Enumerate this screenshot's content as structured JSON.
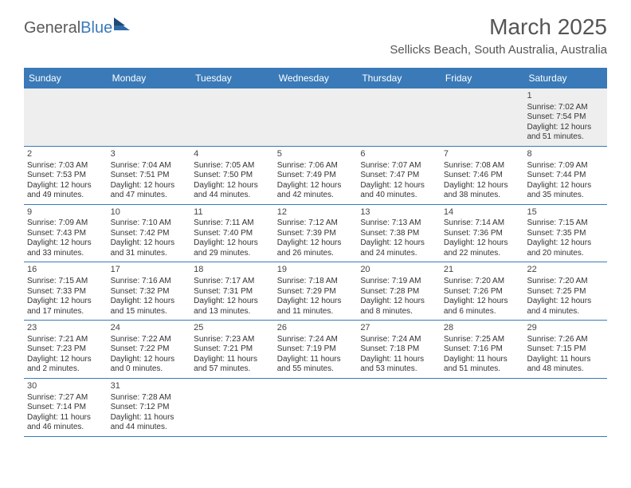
{
  "logo": {
    "part1": "General",
    "part2": "Blue"
  },
  "title": "March 2025",
  "location": "Sellicks Beach, South Australia, Australia",
  "day_headers": [
    "Sunday",
    "Monday",
    "Tuesday",
    "Wednesday",
    "Thursday",
    "Friday",
    "Saturday"
  ],
  "colors": {
    "header_bg": "#3a7ab8",
    "header_text": "#ffffff",
    "rule": "#3a7ab8",
    "first_row_bg": "#eeeeee",
    "title_color": "#555555",
    "text_color": "#333333"
  },
  "weeks": [
    [
      {},
      {},
      {},
      {},
      {},
      {},
      {
        "n": "1",
        "sr": "Sunrise: 7:02 AM",
        "ss": "Sunset: 7:54 PM",
        "d1": "Daylight: 12 hours",
        "d2": "and 51 minutes."
      }
    ],
    [
      {
        "n": "2",
        "sr": "Sunrise: 7:03 AM",
        "ss": "Sunset: 7:53 PM",
        "d1": "Daylight: 12 hours",
        "d2": "and 49 minutes."
      },
      {
        "n": "3",
        "sr": "Sunrise: 7:04 AM",
        "ss": "Sunset: 7:51 PM",
        "d1": "Daylight: 12 hours",
        "d2": "and 47 minutes."
      },
      {
        "n": "4",
        "sr": "Sunrise: 7:05 AM",
        "ss": "Sunset: 7:50 PM",
        "d1": "Daylight: 12 hours",
        "d2": "and 44 minutes."
      },
      {
        "n": "5",
        "sr": "Sunrise: 7:06 AM",
        "ss": "Sunset: 7:49 PM",
        "d1": "Daylight: 12 hours",
        "d2": "and 42 minutes."
      },
      {
        "n": "6",
        "sr": "Sunrise: 7:07 AM",
        "ss": "Sunset: 7:47 PM",
        "d1": "Daylight: 12 hours",
        "d2": "and 40 minutes."
      },
      {
        "n": "7",
        "sr": "Sunrise: 7:08 AM",
        "ss": "Sunset: 7:46 PM",
        "d1": "Daylight: 12 hours",
        "d2": "and 38 minutes."
      },
      {
        "n": "8",
        "sr": "Sunrise: 7:09 AM",
        "ss": "Sunset: 7:44 PM",
        "d1": "Daylight: 12 hours",
        "d2": "and 35 minutes."
      }
    ],
    [
      {
        "n": "9",
        "sr": "Sunrise: 7:09 AM",
        "ss": "Sunset: 7:43 PM",
        "d1": "Daylight: 12 hours",
        "d2": "and 33 minutes."
      },
      {
        "n": "10",
        "sr": "Sunrise: 7:10 AM",
        "ss": "Sunset: 7:42 PM",
        "d1": "Daylight: 12 hours",
        "d2": "and 31 minutes."
      },
      {
        "n": "11",
        "sr": "Sunrise: 7:11 AM",
        "ss": "Sunset: 7:40 PM",
        "d1": "Daylight: 12 hours",
        "d2": "and 29 minutes."
      },
      {
        "n": "12",
        "sr": "Sunrise: 7:12 AM",
        "ss": "Sunset: 7:39 PM",
        "d1": "Daylight: 12 hours",
        "d2": "and 26 minutes."
      },
      {
        "n": "13",
        "sr": "Sunrise: 7:13 AM",
        "ss": "Sunset: 7:38 PM",
        "d1": "Daylight: 12 hours",
        "d2": "and 24 minutes."
      },
      {
        "n": "14",
        "sr": "Sunrise: 7:14 AM",
        "ss": "Sunset: 7:36 PM",
        "d1": "Daylight: 12 hours",
        "d2": "and 22 minutes."
      },
      {
        "n": "15",
        "sr": "Sunrise: 7:15 AM",
        "ss": "Sunset: 7:35 PM",
        "d1": "Daylight: 12 hours",
        "d2": "and 20 minutes."
      }
    ],
    [
      {
        "n": "16",
        "sr": "Sunrise: 7:15 AM",
        "ss": "Sunset: 7:33 PM",
        "d1": "Daylight: 12 hours",
        "d2": "and 17 minutes."
      },
      {
        "n": "17",
        "sr": "Sunrise: 7:16 AM",
        "ss": "Sunset: 7:32 PM",
        "d1": "Daylight: 12 hours",
        "d2": "and 15 minutes."
      },
      {
        "n": "18",
        "sr": "Sunrise: 7:17 AM",
        "ss": "Sunset: 7:31 PM",
        "d1": "Daylight: 12 hours",
        "d2": "and 13 minutes."
      },
      {
        "n": "19",
        "sr": "Sunrise: 7:18 AM",
        "ss": "Sunset: 7:29 PM",
        "d1": "Daylight: 12 hours",
        "d2": "and 11 minutes."
      },
      {
        "n": "20",
        "sr": "Sunrise: 7:19 AM",
        "ss": "Sunset: 7:28 PM",
        "d1": "Daylight: 12 hours",
        "d2": "and 8 minutes."
      },
      {
        "n": "21",
        "sr": "Sunrise: 7:20 AM",
        "ss": "Sunset: 7:26 PM",
        "d1": "Daylight: 12 hours",
        "d2": "and 6 minutes."
      },
      {
        "n": "22",
        "sr": "Sunrise: 7:20 AM",
        "ss": "Sunset: 7:25 PM",
        "d1": "Daylight: 12 hours",
        "d2": "and 4 minutes."
      }
    ],
    [
      {
        "n": "23",
        "sr": "Sunrise: 7:21 AM",
        "ss": "Sunset: 7:23 PM",
        "d1": "Daylight: 12 hours",
        "d2": "and 2 minutes."
      },
      {
        "n": "24",
        "sr": "Sunrise: 7:22 AM",
        "ss": "Sunset: 7:22 PM",
        "d1": "Daylight: 12 hours",
        "d2": "and 0 minutes."
      },
      {
        "n": "25",
        "sr": "Sunrise: 7:23 AM",
        "ss": "Sunset: 7:21 PM",
        "d1": "Daylight: 11 hours",
        "d2": "and 57 minutes."
      },
      {
        "n": "26",
        "sr": "Sunrise: 7:24 AM",
        "ss": "Sunset: 7:19 PM",
        "d1": "Daylight: 11 hours",
        "d2": "and 55 minutes."
      },
      {
        "n": "27",
        "sr": "Sunrise: 7:24 AM",
        "ss": "Sunset: 7:18 PM",
        "d1": "Daylight: 11 hours",
        "d2": "and 53 minutes."
      },
      {
        "n": "28",
        "sr": "Sunrise: 7:25 AM",
        "ss": "Sunset: 7:16 PM",
        "d1": "Daylight: 11 hours",
        "d2": "and 51 minutes."
      },
      {
        "n": "29",
        "sr": "Sunrise: 7:26 AM",
        "ss": "Sunset: 7:15 PM",
        "d1": "Daylight: 11 hours",
        "d2": "and 48 minutes."
      }
    ],
    [
      {
        "n": "30",
        "sr": "Sunrise: 7:27 AM",
        "ss": "Sunset: 7:14 PM",
        "d1": "Daylight: 11 hours",
        "d2": "and 46 minutes."
      },
      {
        "n": "31",
        "sr": "Sunrise: 7:28 AM",
        "ss": "Sunset: 7:12 PM",
        "d1": "Daylight: 11 hours",
        "d2": "and 44 minutes."
      },
      {},
      {},
      {},
      {},
      {}
    ]
  ]
}
